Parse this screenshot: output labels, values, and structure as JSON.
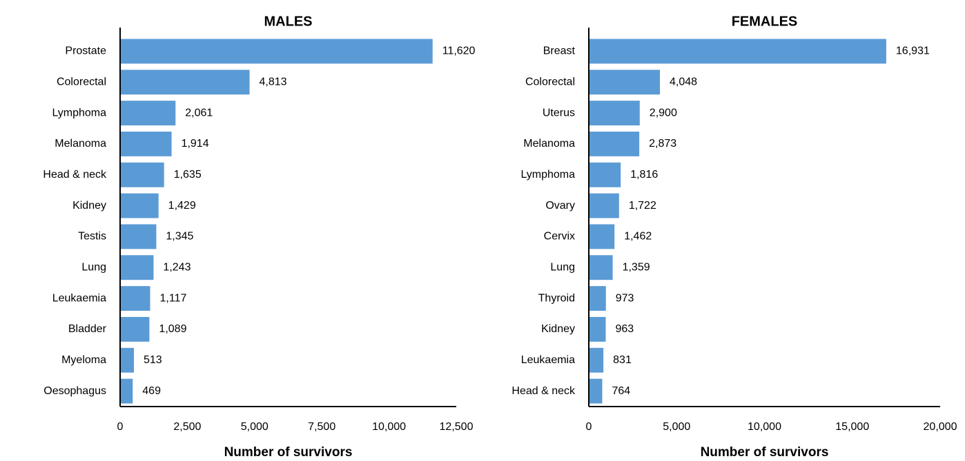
{
  "chart_data": [
    {
      "type": "bar",
      "orientation": "horizontal",
      "title": "MALES",
      "x_label": "Number of survivors",
      "color": "#5b9bd5",
      "categories": [
        "Prostate",
        "Colorectal",
        "Lymphoma",
        "Melanoma",
        "Head & neck",
        "Kidney",
        "Testis",
        "Lung",
        "Leukaemia",
        "Bladder",
        "Myeloma",
        "Oesophagus"
      ],
      "values": [
        11620,
        4813,
        2061,
        1914,
        1635,
        1429,
        1345,
        1243,
        1117,
        1089,
        513,
        469
      ],
      "value_labels": [
        "11,620",
        "4,813",
        "2,061",
        "1,914",
        "1,635",
        "1,429",
        "1,345",
        "1,243",
        "1,117",
        "1,089",
        "513",
        "469"
      ],
      "xlim": [
        0,
        12500
      ],
      "xticks": [
        0,
        {
          "value": 2500,
          "label": "2,500"
        },
        {
          "value": 5000,
          "label": "5,000"
        },
        {
          "value": 7500,
          "label": "7,500"
        },
        {
          "value": 10000,
          "label": "10,000"
        },
        {
          "value": 12500,
          "label": "12,500"
        }
      ]
    },
    {
      "type": "bar",
      "orientation": "horizontal",
      "title": "FEMALES",
      "x_label": "Number of survivors",
      "color": "#5b9bd5",
      "categories": [
        "Breast",
        "Colorectal",
        "Uterus",
        "Melanoma",
        "Lymphoma",
        "Ovary",
        "Cervix",
        "Lung",
        "Thyroid",
        "Kidney",
        "Leukaemia",
        "Head & neck"
      ],
      "values": [
        16931,
        4048,
        2900,
        2873,
        1816,
        1722,
        1462,
        1359,
        973,
        963,
        831,
        764
      ],
      "value_labels": [
        "16,931",
        "4,048",
        "2,900",
        "2,873",
        "1,816",
        "1,722",
        "1,462",
        "1,359",
        "973",
        "963",
        "831",
        "764"
      ],
      "xlim": [
        0,
        20000
      ],
      "xticks": [
        0,
        {
          "value": 5000,
          "label": "5,000"
        },
        {
          "value": 10000,
          "label": "10,000"
        },
        {
          "value": 15000,
          "label": "15,000"
        },
        {
          "value": 20000,
          "label": "20,000"
        }
      ]
    }
  ]
}
